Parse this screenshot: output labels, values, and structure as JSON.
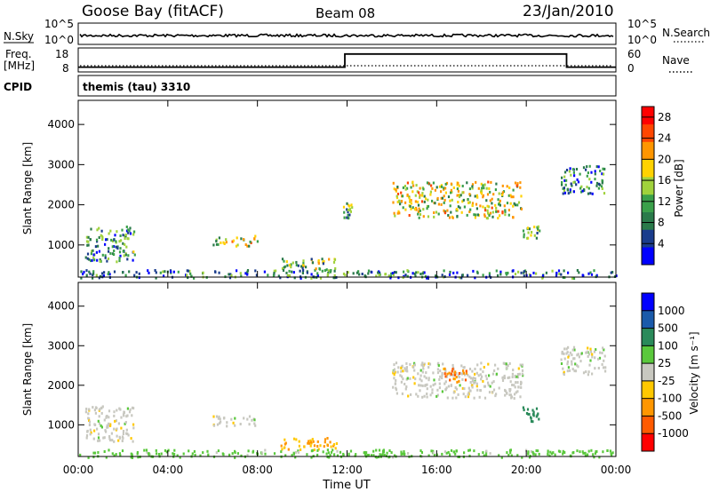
{
  "header": {
    "station": "Goose Bay (fitACF)",
    "beam": "Beam 08",
    "date": "23/Jan/2010"
  },
  "noise_panel": {
    "left_label": "N.Sky",
    "right_label": "N.Search",
    "left_ticks": [
      "10^5",
      "10^0"
    ],
    "right_ticks": [
      "10^5",
      "10^0"
    ]
  },
  "freq_panel": {
    "left_label_line1": "Freq.",
    "left_label_line2": "[MHz]",
    "left_ticks": [
      "18",
      "8"
    ],
    "right_label": "Nave",
    "right_ticks": [
      "60",
      "0"
    ]
  },
  "cpid": {
    "label": "CPID",
    "program": "themis (tau) 3310"
  },
  "colors": {
    "power": [
      "#0000ff",
      "#1a3c8c",
      "#2a7a4a",
      "#3aa04a",
      "#a0d23c",
      "#ffd200",
      "#ff9600",
      "#ff4600",
      "#ff0000"
    ],
    "velocity": [
      "#ff0000",
      "#ff5a00",
      "#ff9600",
      "#ffc800",
      "#c8c8c0",
      "#5ac83c",
      "#2a8a5a",
      "#1a5aaa",
      "#0000ff"
    ]
  },
  "chart_data": [
    {
      "type": "heatmap",
      "name": "power",
      "xlabel": "",
      "ylabel": "Slant Range [km]",
      "x_range_hours": [
        0,
        24
      ],
      "ylim": [
        200,
        4600
      ],
      "y_ticks": [
        "1000",
        "2000",
        "3000",
        "4000"
      ],
      "colorbar": {
        "label": "Power [dB]",
        "ticks": [
          "4",
          "8",
          "12",
          "16",
          "20",
          "24",
          "28"
        ],
        "range": [
          0,
          30
        ]
      },
      "regions": [
        {
          "t0": 0.3,
          "t1": 2.5,
          "r0": 600,
          "r1": 1500,
          "value": 9
        },
        {
          "t0": 6.0,
          "t1": 8.0,
          "r0": 1000,
          "r1": 1250,
          "value": 16
        },
        {
          "t0": 9.0,
          "t1": 11.5,
          "r0": 400,
          "r1": 700,
          "value": 14
        },
        {
          "t0": 11.8,
          "t1": 12.2,
          "r0": 1700,
          "r1": 2100,
          "value": 12
        },
        {
          "t0": 14.0,
          "t1": 19.8,
          "r0": 1700,
          "r1": 2600,
          "value": 16
        },
        {
          "t0": 19.8,
          "t1": 20.6,
          "r0": 1200,
          "r1": 1500,
          "value": 14
        },
        {
          "t0": 21.5,
          "t1": 23.5,
          "r0": 2300,
          "r1": 3000,
          "value": 8
        },
        {
          "t0": 0.0,
          "t1": 24.0,
          "r0": 200,
          "r1": 400,
          "value": 8
        }
      ]
    },
    {
      "type": "heatmap",
      "name": "velocity",
      "xlabel": "Time UT",
      "ylabel": "Slant Range [km]",
      "x_range_hours": [
        0,
        24
      ],
      "x_ticks": [
        "00:00",
        "04:00",
        "08:00",
        "12:00",
        "16:00",
        "20:00",
        "00:00"
      ],
      "ylim": [
        200,
        4600
      ],
      "y_ticks": [
        "1000",
        "2000",
        "3000",
        "4000"
      ],
      "colorbar": {
        "label": "Velocity [m s⁻¹]",
        "ticks": [
          "-1000",
          "-500",
          "-100",
          "-25",
          "25",
          "100",
          "500",
          "1000"
        ]
      },
      "regions": [
        {
          "t0": 0.3,
          "t1": 2.5,
          "r0": 600,
          "r1": 1500,
          "value": 0
        },
        {
          "t0": 6.0,
          "t1": 8.0,
          "r0": 1000,
          "r1": 1250,
          "value": 0
        },
        {
          "t0": 9.0,
          "t1": 11.5,
          "r0": 400,
          "r1": 700,
          "value": -100
        },
        {
          "t0": 14.0,
          "t1": 19.8,
          "r0": 1700,
          "r1": 2600,
          "value": 0
        },
        {
          "t0": 16.3,
          "t1": 17.3,
          "r0": 2100,
          "r1": 2500,
          "value": -500
        },
        {
          "t0": 19.8,
          "t1": 20.6,
          "r0": 1100,
          "r1": 1500,
          "value": 200
        },
        {
          "t0": 21.5,
          "t1": 23.5,
          "r0": 2300,
          "r1": 3000,
          "value": 0
        },
        {
          "t0": 0.0,
          "t1": 24.0,
          "r0": 200,
          "r1": 400,
          "value": 50
        }
      ]
    },
    {
      "type": "line",
      "name": "frequency",
      "x_hours": [
        0,
        11.9,
        11.9,
        21.8,
        21.8,
        24
      ],
      "y_mhz": [
        10,
        10,
        15.5,
        15.5,
        10,
        10
      ],
      "ylim": [
        8,
        18
      ]
    }
  ]
}
